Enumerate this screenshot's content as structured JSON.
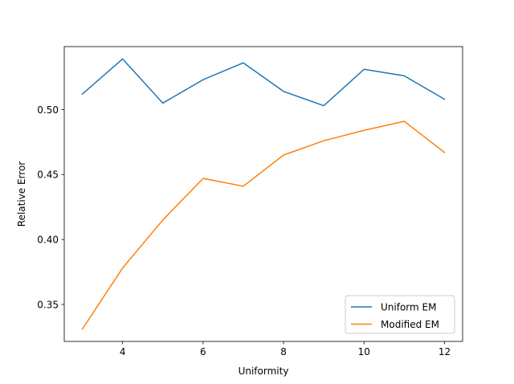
{
  "chart_data": {
    "type": "line",
    "title": "",
    "xlabel": "Uniformity",
    "ylabel": "Relative Error",
    "xlim": [
      2.55,
      12.45
    ],
    "ylim": [
      0.3215,
      0.5485
    ],
    "xticks": [
      4,
      6,
      8,
      10,
      12
    ],
    "yticks": [
      0.35,
      0.4,
      0.45,
      0.5
    ],
    "xtick_labels": [
      "4",
      "6",
      "8",
      "10",
      "12"
    ],
    "ytick_labels": [
      "0.35",
      "0.40",
      "0.45",
      "0.50"
    ],
    "grid": false,
    "legend_position": "lower-right",
    "x": [
      3,
      4,
      5,
      6,
      7,
      8,
      9,
      10,
      11,
      12
    ],
    "series": [
      {
        "name": "Uniform EM",
        "color": "#1f77b4",
        "values": [
          0.512,
          0.539,
          0.505,
          0.523,
          0.536,
          0.514,
          0.503,
          0.531,
          0.526,
          0.508
        ]
      },
      {
        "name": "Modified EM",
        "color": "#ff7f0e",
        "values": [
          0.331,
          0.378,
          0.415,
          0.447,
          0.441,
          0.465,
          0.476,
          0.484,
          0.491,
          0.467
        ]
      }
    ]
  }
}
